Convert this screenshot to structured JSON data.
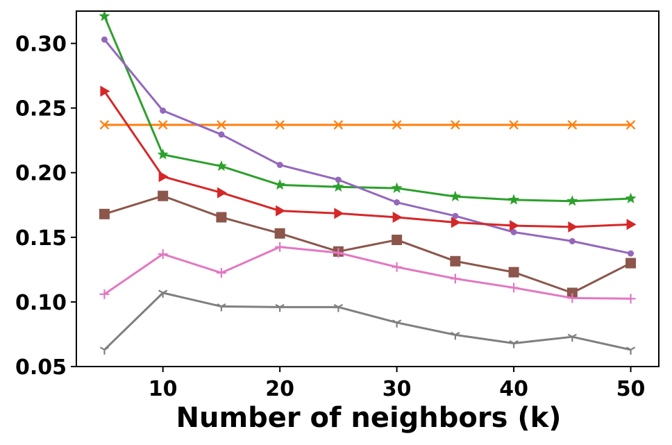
{
  "chart_data": {
    "type": "line",
    "title": "",
    "xlabel": "Number of neighbors (k)",
    "ylabel": "",
    "xlim": [
      2.6,
      52.4
    ],
    "ylim": [
      0.05,
      0.325
    ],
    "xticks": [
      10,
      20,
      30,
      40,
      50
    ],
    "xtick_labels": [
      "10",
      "20",
      "30",
      "40",
      "50"
    ],
    "yticks": [
      0.05,
      0.1,
      0.15,
      0.2,
      0.25,
      0.3
    ],
    "ytick_labels": [
      "0.05",
      "0.10",
      "0.15",
      "0.20",
      "0.25",
      "0.30"
    ],
    "grid": false,
    "x": [
      5,
      10,
      15,
      20,
      25,
      30,
      35,
      40,
      45,
      50
    ],
    "series": [
      {
        "name": "orange",
        "color": "#ff7f0e",
        "marker": "x",
        "values": [
          0.237,
          0.237,
          0.237,
          0.237,
          0.237,
          0.237,
          0.237,
          0.237,
          0.237,
          0.237
        ]
      },
      {
        "name": "green",
        "color": "#2ca02c",
        "marker": "star",
        "values": [
          0.321,
          0.214,
          0.205,
          0.1905,
          0.189,
          0.188,
          0.1815,
          0.179,
          0.178,
          0.18
        ]
      },
      {
        "name": "purple",
        "color": "#9467bd",
        "marker": "dot",
        "values": [
          0.303,
          0.248,
          0.2295,
          0.206,
          0.1945,
          0.177,
          0.1665,
          0.154,
          0.147,
          0.1375
        ]
      },
      {
        "name": "red",
        "color": "#d62728",
        "marker": "triangle-right",
        "values": [
          0.263,
          0.197,
          0.1845,
          0.1705,
          0.1685,
          0.1655,
          0.1615,
          0.159,
          0.158,
          0.16
        ]
      },
      {
        "name": "brown",
        "color": "#8c564b",
        "marker": "square",
        "values": [
          0.168,
          0.182,
          0.1655,
          0.153,
          0.139,
          0.148,
          0.1315,
          0.123,
          0.107,
          0.13
        ]
      },
      {
        "name": "pink",
        "color": "#e377c2",
        "marker": "plus",
        "values": [
          0.106,
          0.137,
          0.1225,
          0.1425,
          0.138,
          0.127,
          0.118,
          0.111,
          0.103,
          0.1025
        ]
      },
      {
        "name": "gray",
        "color": "#7f7f7f",
        "marker": "tri-down",
        "values": [
          0.063,
          0.107,
          0.0965,
          0.096,
          0.096,
          0.084,
          0.0745,
          0.068,
          0.073,
          0.063
        ]
      }
    ]
  }
}
